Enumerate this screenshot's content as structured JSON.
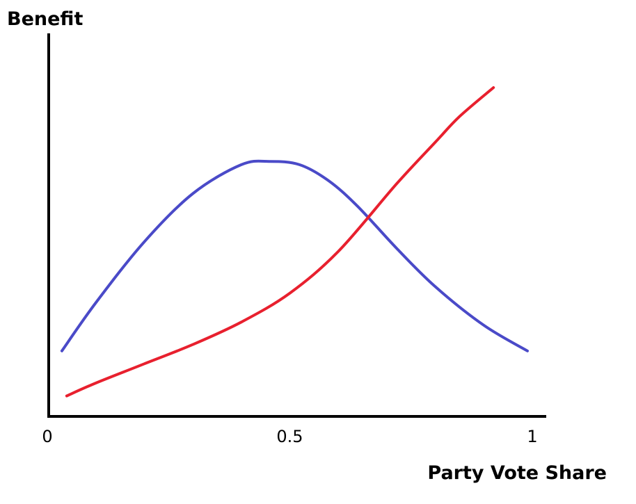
{
  "chart_data": {
    "type": "line",
    "title": "",
    "xlabel": "Party Vote Share",
    "ylabel": "Benefit",
    "xlim": [
      0,
      1
    ],
    "ylim": [
      0,
      1
    ],
    "x_ticks": [
      {
        "value": 0,
        "label": "0"
      },
      {
        "value": 0.5,
        "label": "0.5"
      },
      {
        "value": 1,
        "label": "1"
      }
    ],
    "grid": false,
    "legend": "none",
    "series": [
      {
        "color": "#4a4ac8",
        "x": [
          0.03,
          0.1,
          0.2,
          0.3,
          0.4,
          0.46,
          0.52,
          0.58,
          0.64,
          0.72,
          0.8,
          0.9,
          0.99
        ],
        "y": [
          0.18,
          0.33,
          0.52,
          0.67,
          0.76,
          0.77,
          0.76,
          0.71,
          0.63,
          0.5,
          0.38,
          0.26,
          0.18
        ]
      },
      {
        "color": "#e8202e",
        "x": [
          0.04,
          0.1,
          0.2,
          0.3,
          0.4,
          0.5,
          0.6,
          0.72,
          0.8,
          0.85,
          0.92
        ],
        "y": [
          0.04,
          0.08,
          0.14,
          0.2,
          0.27,
          0.36,
          0.49,
          0.7,
          0.83,
          0.91,
          1.0
        ]
      }
    ]
  }
}
